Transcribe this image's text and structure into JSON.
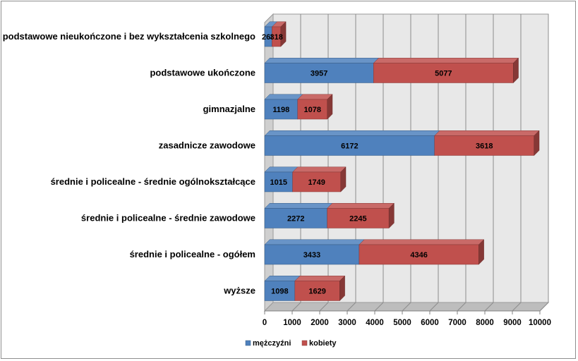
{
  "chart_data": {
    "type": "bar",
    "orientation": "horizontal",
    "stacked": true,
    "three_d": true,
    "categories": [
      "podstawowe nieukończone i bez wykształcenia szkolnego",
      "podstawowe ukończone",
      "gimnazjalne",
      "zasadnicze zawodowe",
      "średnie i policealne - średnie ogólnokształcące",
      "średnie i policealne - średnie zawodowe",
      "średnie i policealne - ogółem",
      "wyższe"
    ],
    "series": [
      {
        "name": "mężczyźni",
        "color": "#4f81bd",
        "values": [
          268,
          3957,
          1198,
          6172,
          1015,
          2272,
          3433,
          1098
        ]
      },
      {
        "name": "kobiety",
        "color": "#c0504d",
        "values": [
          318,
          5077,
          1078,
          3618,
          1749,
          2245,
          4346,
          1629
        ]
      }
    ],
    "data_labels": [
      [
        "268",
        "318"
      ],
      [
        "3957",
        "5077"
      ],
      [
        "1198",
        "1078"
      ],
      [
        "6172",
        "3618"
      ],
      [
        "1015",
        "1749"
      ],
      [
        "2272",
        "2245"
      ],
      [
        "3433",
        "4346"
      ],
      [
        "1098",
        "1629"
      ]
    ],
    "x_ticks": [
      "0",
      "1000",
      "2000",
      "3000",
      "4000",
      "5000",
      "6000",
      "7000",
      "8000",
      "9000",
      "10000"
    ],
    "xlim": [
      0,
      10000
    ],
    "grid": true,
    "legend_position": "bottom",
    "title": "",
    "xlabel": "",
    "ylabel": ""
  }
}
